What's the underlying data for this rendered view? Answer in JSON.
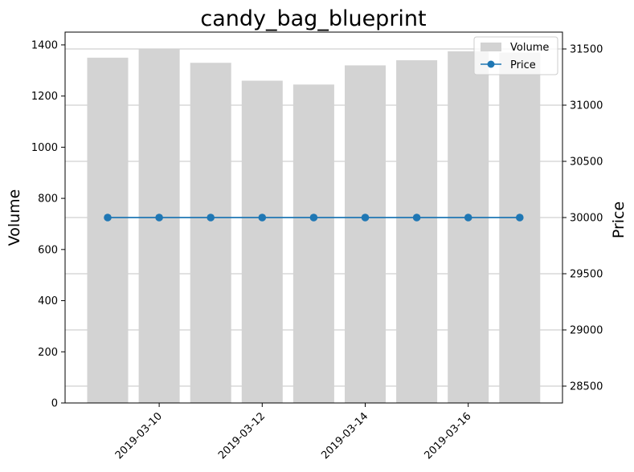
{
  "chart_data": {
    "type": "bar+line",
    "title": "candy_bag_blueprint",
    "x": [
      "2019-03-09",
      "2019-03-10",
      "2019-03-11",
      "2019-03-12",
      "2019-03-13",
      "2019-03-14",
      "2019-03-15",
      "2019-03-16",
      "2019-03-17"
    ],
    "x_tick_labels": [
      "2019-03-10",
      "2019-03-12",
      "2019-03-14",
      "2019-03-16"
    ],
    "series": [
      {
        "name": "Volume",
        "kind": "bar",
        "axis": "left",
        "color": "#d3d3d3",
        "values": [
          1350,
          1382,
          1330,
          1260,
          1245,
          1320,
          1340,
          1375,
          1370
        ]
      },
      {
        "name": "Price",
        "kind": "line",
        "axis": "right",
        "color": "#1f77b4",
        "marker": "circle",
        "values": [
          30000,
          30000,
          30000,
          30000,
          30000,
          30000,
          30000,
          30000,
          30000
        ]
      }
    ],
    "ylabel_left": "Volume",
    "ylabel_right": "Price",
    "ylim_left": [
      0,
      1450
    ],
    "ylim_right": [
      28350,
      31650
    ],
    "yticks_left": [
      "0",
      "200",
      "400",
      "600",
      "800",
      "1000",
      "1200",
      "1400"
    ],
    "yticks_right": [
      "28500",
      "29000",
      "29500",
      "30000",
      "30500",
      "31000",
      "31500"
    ],
    "grid": "horizontal lines on right axis",
    "legend_position": "top-right"
  }
}
